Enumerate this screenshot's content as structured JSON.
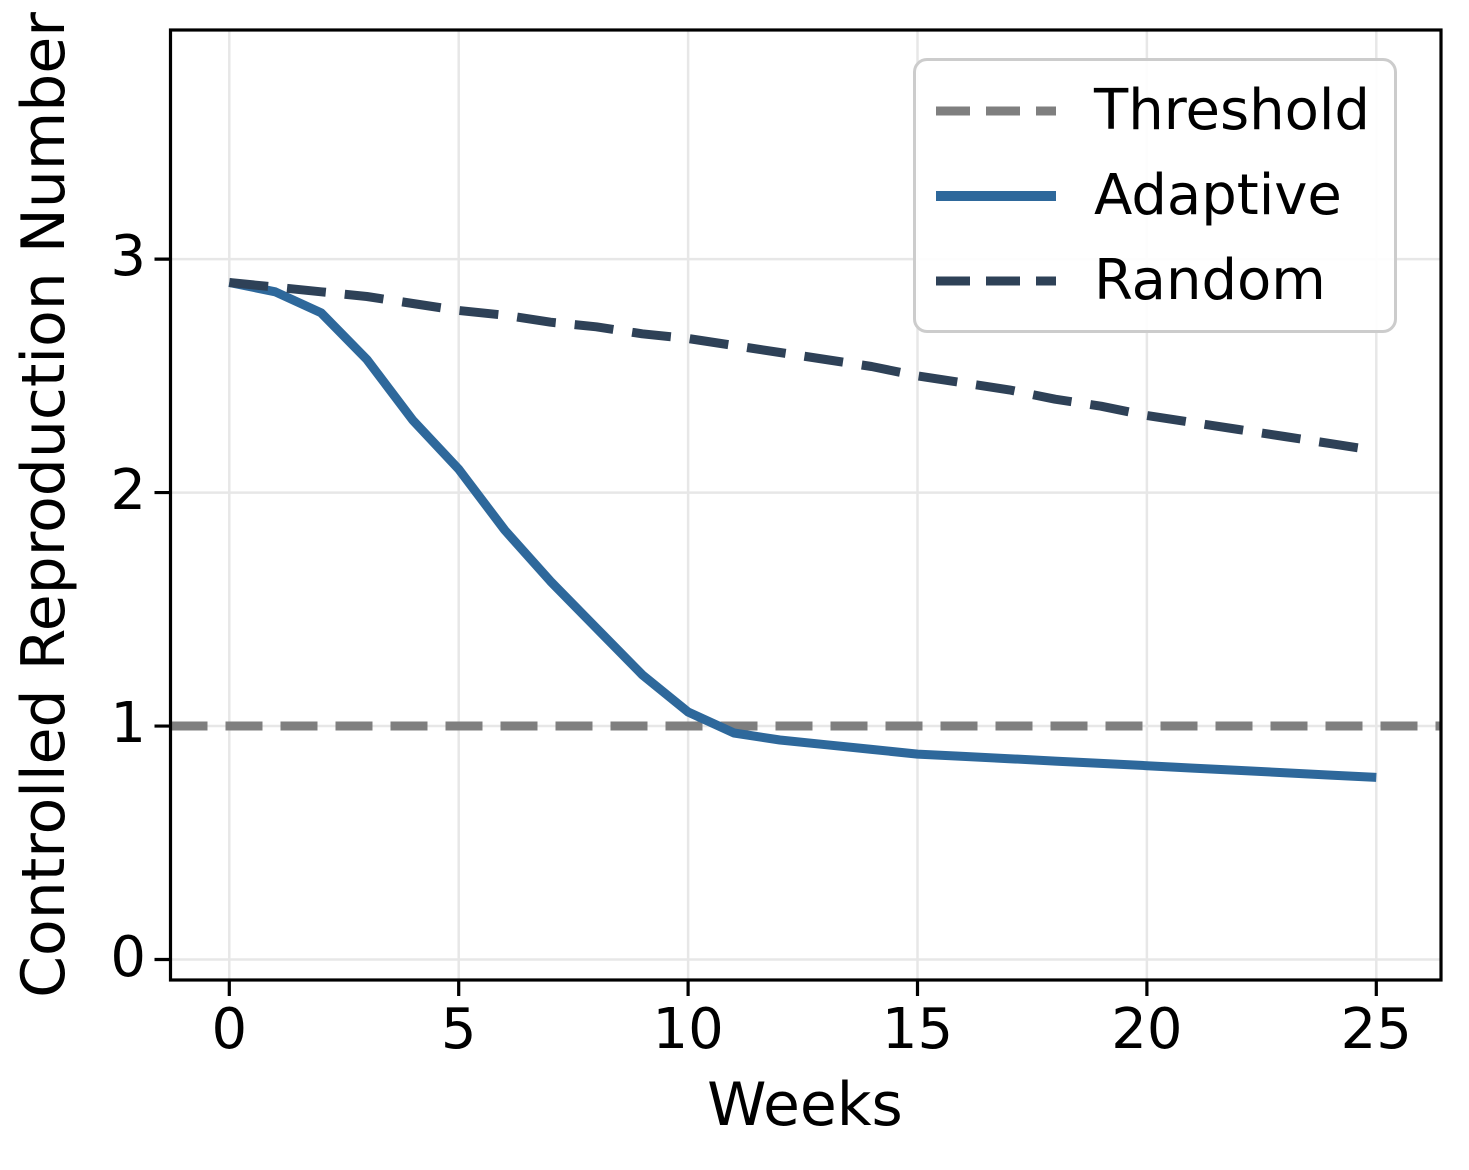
{
  "chart_data": {
    "type": "line",
    "title": "",
    "xlabel": "Weeks",
    "ylabel": "Controlled Reproduction Number",
    "x_ticks": [
      0,
      5,
      10,
      15,
      20,
      25
    ],
    "y_ticks": [
      0,
      1,
      2,
      3
    ],
    "xlim": [
      -1.3,
      26.4
    ],
    "ylim": [
      -0.09,
      3.98
    ],
    "grid": true,
    "legend_position": "upper right",
    "weeks": [
      0,
      1,
      2,
      3,
      4,
      5,
      6,
      7,
      8,
      9,
      10,
      11,
      12,
      13,
      14,
      15,
      16,
      17,
      18,
      19,
      20,
      21,
      22,
      23,
      24,
      25
    ],
    "series": [
      {
        "name": "Threshold",
        "kind": "hline",
        "value": 1.0,
        "color": "#7f7f7f",
        "line_style": "dashed"
      },
      {
        "name": "Adaptive",
        "kind": "line",
        "color": "#2e689b",
        "line_style": "solid",
        "values": [
          2.9,
          2.86,
          2.77,
          2.57,
          2.31,
          2.1,
          1.84,
          1.62,
          1.42,
          1.22,
          1.06,
          0.97,
          0.94,
          0.92,
          0.9,
          0.88,
          0.87,
          0.86,
          0.85,
          0.84,
          0.83,
          0.82,
          0.81,
          0.8,
          0.79,
          0.78
        ]
      },
      {
        "name": "Random",
        "kind": "line",
        "color": "#2e4157",
        "line_style": "dashed",
        "values": [
          2.9,
          2.88,
          2.86,
          2.84,
          2.81,
          2.78,
          2.76,
          2.73,
          2.71,
          2.68,
          2.66,
          2.63,
          2.6,
          2.57,
          2.54,
          2.5,
          2.47,
          2.44,
          2.4,
          2.37,
          2.33,
          2.3,
          2.27,
          2.24,
          2.21,
          2.18
        ]
      }
    ],
    "grid_color": "#e7e7e7",
    "axis_color": "#000000",
    "background": "#ffffff"
  }
}
